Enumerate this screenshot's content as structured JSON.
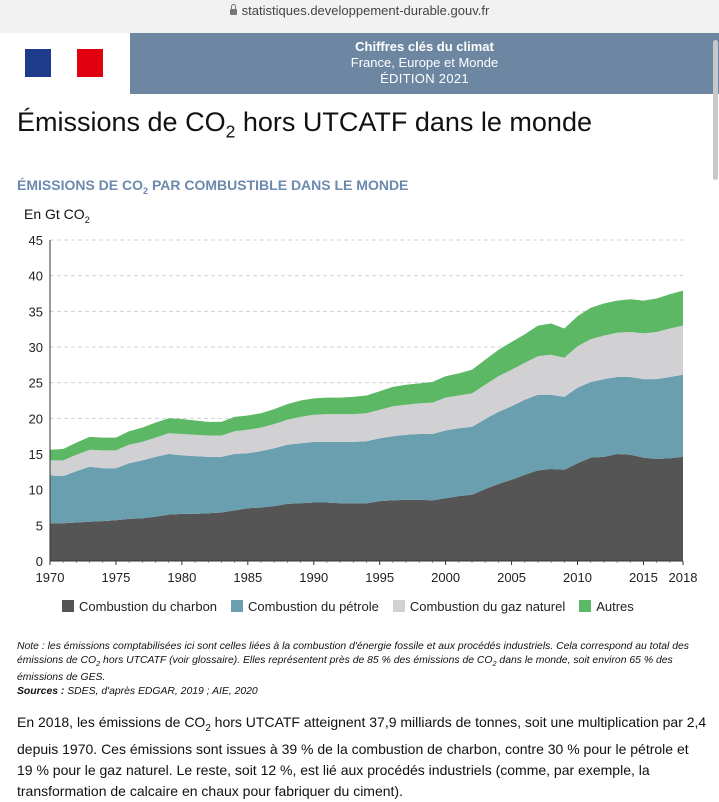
{
  "browser": {
    "url": "statistiques.developpement-durable.gouv.fr"
  },
  "header": {
    "line1": "Chiffres clés du climat",
    "line2": "France, Europe et Monde",
    "line3": "ÉDITION 2021"
  },
  "page_title": {
    "pre": "Émissions de CO",
    "sub": "2",
    "post": " hors UTCATF dans le monde"
  },
  "chart_title": {
    "pre": "ÉMISSIONS DE CO",
    "sub": "2",
    "post": " PAR COMBUSTIBLE DANS LE MONDE"
  },
  "unit_label": {
    "pre": "En Gt CO",
    "sub": "2"
  },
  "colors": {
    "charbon": "#555555",
    "petrole": "#6a9fb0",
    "gaz": "#d1d1d3",
    "autres": "#5cb865",
    "title_blue": "#6b8aad",
    "header_band": "#6d87a3"
  },
  "chart_data": {
    "type": "area",
    "stacked": true,
    "title": "ÉMISSIONS DE CO2 PAR COMBUSTIBLE DANS LE MONDE",
    "ylabel": "En Gt CO2",
    "ylim": [
      0,
      45
    ],
    "yticks": [
      0,
      5,
      10,
      15,
      20,
      25,
      30,
      35,
      40,
      45
    ],
    "xlim": [
      1970,
      2018
    ],
    "xticks": [
      1970,
      1975,
      1980,
      1985,
      1990,
      1995,
      2000,
      2005,
      2010,
      2015,
      2018
    ],
    "grid": "horizontal dashed",
    "legend_position": "bottom",
    "x": [
      1970,
      1971,
      1972,
      1973,
      1974,
      1975,
      1976,
      1977,
      1978,
      1979,
      1980,
      1981,
      1982,
      1983,
      1984,
      1985,
      1986,
      1987,
      1988,
      1989,
      1990,
      1991,
      1992,
      1993,
      1994,
      1995,
      1996,
      1997,
      1998,
      1999,
      2000,
      2001,
      2002,
      2003,
      2004,
      2005,
      2006,
      2007,
      2008,
      2009,
      2010,
      2011,
      2012,
      2013,
      2014,
      2015,
      2016,
      2017,
      2018
    ],
    "series": [
      {
        "name": "Combustion du charbon",
        "color_key": "charbon",
        "values": [
          5.3,
          5.3,
          5.4,
          5.5,
          5.6,
          5.7,
          5.9,
          6.0,
          6.2,
          6.5,
          6.6,
          6.6,
          6.7,
          6.8,
          7.1,
          7.4,
          7.5,
          7.7,
          8.0,
          8.1,
          8.2,
          8.2,
          8.1,
          8.1,
          8.1,
          8.4,
          8.5,
          8.6,
          8.6,
          8.5,
          8.8,
          9.1,
          9.3,
          10.1,
          10.8,
          11.4,
          12.1,
          12.7,
          12.9,
          12.8,
          13.7,
          14.5,
          14.6,
          15.0,
          14.9,
          14.5,
          14.3,
          14.4,
          14.6
        ]
      },
      {
        "name": "Combustion du pétrole",
        "color_key": "petrole",
        "values": [
          6.7,
          6.6,
          7.2,
          7.7,
          7.4,
          7.3,
          7.8,
          8.1,
          8.4,
          8.5,
          8.2,
          8.1,
          7.9,
          7.8,
          7.9,
          7.7,
          7.9,
          8.1,
          8.3,
          8.4,
          8.5,
          8.5,
          8.6,
          8.6,
          8.7,
          8.8,
          9.0,
          9.1,
          9.2,
          9.3,
          9.5,
          9.5,
          9.5,
          9.8,
          10.1,
          10.3,
          10.5,
          10.6,
          10.4,
          10.2,
          10.6,
          10.6,
          10.9,
          10.8,
          10.9,
          11.0,
          11.2,
          11.4,
          11.5
        ]
      },
      {
        "name": "Combustion du gaz naturel",
        "color_key": "gaz",
        "values": [
          2.1,
          2.2,
          2.3,
          2.4,
          2.5,
          2.5,
          2.6,
          2.6,
          2.7,
          2.9,
          3.0,
          3.0,
          3.0,
          3.0,
          3.2,
          3.3,
          3.3,
          3.4,
          3.5,
          3.7,
          3.8,
          3.9,
          3.9,
          3.9,
          3.9,
          4.0,
          4.2,
          4.2,
          4.3,
          4.4,
          4.6,
          4.6,
          4.7,
          4.8,
          5.0,
          5.1,
          5.2,
          5.4,
          5.6,
          5.5,
          5.8,
          6.0,
          6.1,
          6.2,
          6.3,
          6.4,
          6.6,
          6.8,
          6.9
        ]
      },
      {
        "name": "Autres",
        "color_key": "autres",
        "values": [
          1.5,
          1.6,
          1.7,
          1.8,
          1.8,
          1.8,
          1.9,
          2.0,
          2.1,
          2.1,
          2.1,
          2.0,
          1.9,
          1.9,
          2.0,
          2.0,
          2.0,
          2.1,
          2.2,
          2.3,
          2.3,
          2.3,
          2.3,
          2.4,
          2.5,
          2.6,
          2.7,
          2.8,
          2.8,
          2.9,
          3.0,
          3.1,
          3.3,
          3.5,
          3.7,
          3.9,
          4.0,
          4.3,
          4.4,
          4.1,
          4.2,
          4.4,
          4.5,
          4.5,
          4.6,
          4.6,
          4.7,
          4.8,
          4.9
        ]
      }
    ]
  },
  "legend": [
    {
      "label": "Combustion du charbon",
      "color_key": "charbon"
    },
    {
      "label": "Combustion du pétrole",
      "color_key": "petrole"
    },
    {
      "label": "Combustion du gaz naturel",
      "color_key": "gaz"
    },
    {
      "label": "Autres",
      "color_key": "autres"
    }
  ],
  "note": {
    "t1": "Note : les émissions comptabilisées ici sont celles liées à la combustion d'énergie fossile et aux procédés industriels. Cela correspond au total des émissions de CO",
    "s1": "2",
    "t2": " hors UTCATF (voir glossaire). Elles représentent près de 85 % des émissions de CO",
    "s2": "2",
    "t3": " dans le monde, soit environ 65 % des émissions de GES.",
    "sources_label": "Sources :",
    "sources_text": " SDES, d'après EDGAR, 2019 ; AIE, 2020"
  },
  "paragraph": {
    "t1": "En 2018, les émissions de CO",
    "s1": "2",
    "t2": " hors UTCATF atteignent 37,9 milliards de tonnes, soit une multiplication par 2,4 depuis 1970. Ces émissions sont issues à 39 % de la combustion de charbon, contre 30 % pour le pétrole et 19 % pour le gaz naturel. Le reste, soit 12 %, est lié aux procédés industriels (comme, par exemple, la transformation de calcaire en chaux pour fabriquer du ciment)."
  }
}
